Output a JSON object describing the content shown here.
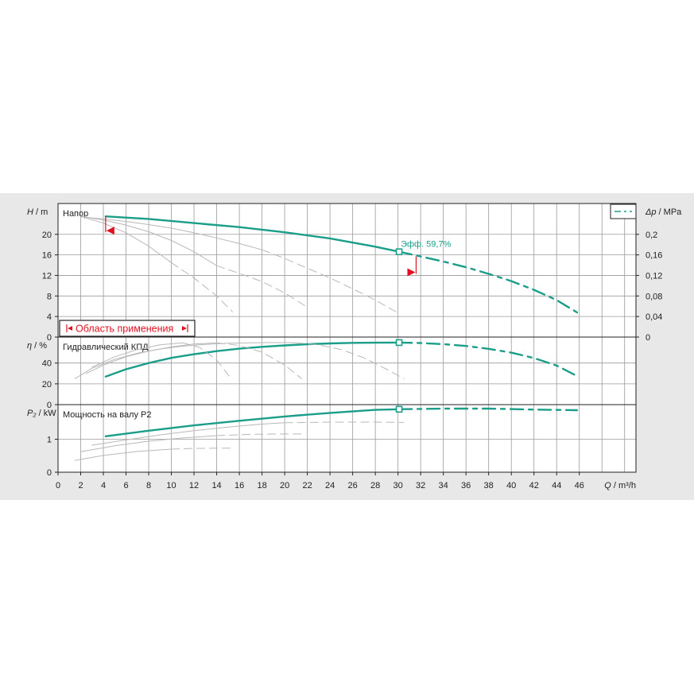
{
  "colors": {
    "accent": "#1a9e8a",
    "grid": "#9a9a9a",
    "gray_curves": "#b8b8b8",
    "marker_red": "#e01020",
    "panel_bg": "#e8e8e8",
    "plot_bg": "#ffffff"
  },
  "range_box": {
    "label": "Область применения"
  },
  "operating_point": {
    "label": "Эфф.  59,7%",
    "q": 30.1
  },
  "chart_data": {
    "type": "line",
    "x": {
      "label_italic": "Q",
      "label_unit": " / m³/h",
      "lim": [
        0,
        51
      ],
      "ticks": [
        0,
        2,
        4,
        6,
        8,
        10,
        12,
        14,
        16,
        18,
        20,
        22,
        24,
        26,
        28,
        30,
        32,
        34,
        36,
        38,
        40,
        42,
        44,
        46
      ]
    },
    "panels": [
      {
        "name": "head",
        "title": "Напор",
        "ylabel_italic": "H",
        "ylabel_unit": " / m",
        "ylim": [
          0,
          26
        ],
        "yticks": [
          0,
          4,
          8,
          12,
          16,
          20
        ],
        "right_axis": {
          "label_italic": "Δp",
          "label_unit": " / MPa",
          "lim": [
            0,
            0.26
          ],
          "ticks": [
            "0",
            "0,04",
            "0,08",
            "0,12",
            "0,16",
            "0,2"
          ],
          "tick_values": [
            0,
            0.04,
            0.08,
            0.12,
            0.16,
            0.2
          ]
        },
        "series": [
          {
            "style": "solid",
            "color": "accent",
            "x": [
              4.2,
              8,
              12,
              16,
              20,
              24,
              28,
              30.1
            ],
            "y": [
              23.5,
              23.0,
              22.2,
              21.4,
              20.4,
              19.2,
              17.6,
              16.6
            ]
          },
          {
            "style": "dashed",
            "color": "accent",
            "x": [
              30.1,
              32,
              34,
              36,
              38,
              40,
              42,
              44,
              45.8
            ],
            "y": [
              16.6,
              15.7,
              14.7,
              13.6,
              12.3,
              10.9,
              9.2,
              7.2,
              4.8
            ]
          },
          {
            "style": "thin",
            "color": "gray",
            "x": [
              2,
              4,
              6,
              8,
              10,
              12,
              14,
              16,
              18
            ],
            "y": [
              23.4,
              23.0,
              22.5,
              21.9,
              21.2,
              20.3,
              19.3,
              18.2,
              17.0
            ]
          },
          {
            "style": "thin-dashed",
            "color": "gray",
            "x": [
              18,
              20,
              22,
              24,
              26,
              28,
              30
            ],
            "y": [
              17.0,
              15.3,
              13.4,
              11.5,
              9.4,
              7.2,
              4.7
            ]
          },
          {
            "style": "thin",
            "color": "gray",
            "x": [
              2,
              4,
              6,
              8,
              10,
              12,
              14
            ],
            "y": [
              23.5,
              22.8,
              21.8,
              20.5,
              18.8,
              16.6,
              13.9
            ]
          },
          {
            "style": "thin-dashed",
            "color": "gray",
            "x": [
              14,
              16,
              18,
              20,
              22
            ],
            "y": [
              13.9,
              12.4,
              10.8,
              8.6,
              5.8
            ]
          },
          {
            "style": "thin",
            "color": "gray",
            "x": [
              2,
              4,
              6,
              8,
              10
            ],
            "y": [
              23.5,
              22.2,
              20.3,
              17.7,
              14.5
            ]
          },
          {
            "style": "thin-dashed",
            "color": "gray",
            "x": [
              10,
              12,
              14,
              15.4
            ],
            "y": [
              14.5,
              11.5,
              8.0,
              4.9
            ]
          }
        ]
      },
      {
        "name": "efficiency",
        "title": "Гидравлический КПД",
        "ylabel_italic": "η",
        "ylabel_unit": " / %",
        "ylim": [
          0,
          65
        ],
        "yticks": [
          0,
          20,
          40
        ],
        "series": [
          {
            "style": "solid",
            "color": "accent",
            "x": [
              4.2,
              6,
              8,
              10,
              12,
              14,
              16,
              18,
              20,
              22,
              24,
              26,
              28,
              30.1
            ],
            "y": [
              27,
              34,
              40,
              45,
              48.5,
              51.5,
              53.8,
              55.6,
              57.0,
              58.1,
              58.9,
              59.4,
              59.6,
              59.7
            ]
          },
          {
            "style": "dashed",
            "color": "accent",
            "x": [
              30.1,
              32,
              34,
              36,
              38,
              40,
              42,
              44,
              45.8
            ],
            "y": [
              59.7,
              59.3,
              58.2,
              56.4,
              53.7,
              50.0,
              44.8,
              37.6,
              27.5
            ]
          },
          {
            "style": "thin",
            "color": "gray",
            "x": [
              1.5,
              3,
              5,
              7,
              9,
              11,
              13,
              15,
              17,
              19,
              21
            ],
            "y": [
              25,
              35,
              43.5,
              49.5,
              53.5,
              56.3,
              58.0,
              59.0,
              59.5,
              59.7,
              59.6
            ]
          },
          {
            "style": "thin-dashed",
            "color": "gray",
            "x": [
              21,
              23,
              25,
              27,
              29,
              30.5
            ],
            "y": [
              59.6,
              57.5,
              53.0,
              45.0,
              34.0,
              25.0
            ]
          },
          {
            "style": "thin",
            "color": "gray",
            "x": [
              2.5,
              4,
              6,
              8,
              10,
              12,
              14
            ],
            "y": [
              30,
              38,
              46,
              51.5,
              55.5,
              58.3,
              59.5
            ]
          },
          {
            "style": "thin-dashed",
            "color": "gray",
            "x": [
              14,
              16,
              18,
              20,
              21.5
            ],
            "y": [
              59.5,
              57.0,
              50.5,
              38.0,
              25.0
            ]
          },
          {
            "style": "thin",
            "color": "gray",
            "x": [
              3,
              5,
              7,
              9,
              11
            ],
            "y": [
              36,
              46,
              53,
              57.5,
              59.5
            ]
          },
          {
            "style": "thin-dashed",
            "color": "gray",
            "x": [
              11,
              12.5,
              14,
              15.2
            ],
            "y": [
              59.5,
              55.0,
              43.0,
              26.0
            ]
          }
        ]
      },
      {
        "name": "power",
        "title": "Мощность на валу P2",
        "ylabel_italic": "P₂",
        "ylabel_unit": " / kW",
        "ylim": [
          0,
          2.05
        ],
        "yticks": [
          0,
          1
        ],
        "series": [
          {
            "style": "solid",
            "color": "accent",
            "x": [
              4.2,
              8,
              12,
              16,
              20,
              24,
              28,
              30.1
            ],
            "y": [
              1.09,
              1.26,
              1.42,
              1.56,
              1.69,
              1.8,
              1.89,
              1.91
            ]
          },
          {
            "style": "dashed",
            "color": "accent",
            "x": [
              30.1,
              34,
              38,
              42,
              45.8
            ],
            "y": [
              1.91,
              1.93,
              1.93,
              1.9,
              1.88
            ]
          },
          {
            "style": "thin",
            "color": "gray",
            "x": [
              3,
              6,
              9,
              12,
              15,
              18,
              20
            ],
            "y": [
              0.82,
              0.98,
              1.13,
              1.26,
              1.37,
              1.46,
              1.5
            ]
          },
          {
            "style": "thin-dashed",
            "color": "gray",
            "x": [
              20,
              24,
              28,
              30.5
            ],
            "y": [
              1.5,
              1.52,
              1.52,
              1.51
            ]
          },
          {
            "style": "thin",
            "color": "gray",
            "x": [
              2,
              5,
              8,
              11,
              14
            ],
            "y": [
              0.62,
              0.8,
              0.94,
              1.04,
              1.11
            ]
          },
          {
            "style": "thin-dashed",
            "color": "gray",
            "x": [
              14,
              17,
              20,
              21.5
            ],
            "y": [
              1.11,
              1.15,
              1.16,
              1.16
            ]
          },
          {
            "style": "thin",
            "color": "gray",
            "x": [
              1.5,
              4,
              7,
              10
            ],
            "y": [
              0.36,
              0.51,
              0.63,
              0.7
            ]
          },
          {
            "style": "thin-dashed",
            "color": "gray",
            "x": [
              10,
              12,
              14,
              15.2
            ],
            "y": [
              0.7,
              0.72,
              0.73,
              0.73
            ]
          }
        ]
      }
    ],
    "range_markers": {
      "min_q": 4.2,
      "max_q": 31.6,
      "h_at_min": 23.5,
      "h_at_max": 15.7
    }
  }
}
